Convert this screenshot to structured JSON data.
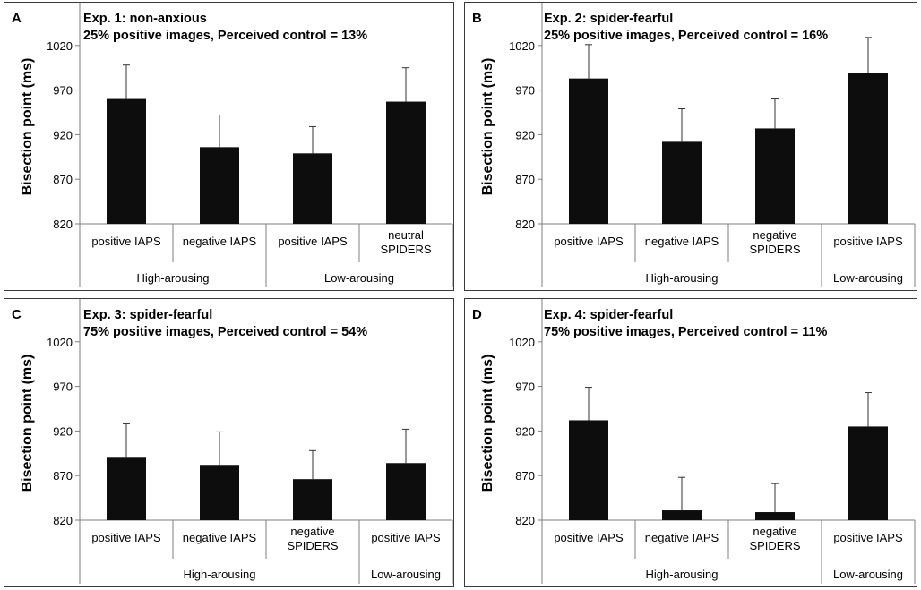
{
  "chart_data": [
    {
      "type": "bar",
      "panel_letter": "A",
      "title_lines": [
        "Exp. 1: non-anxious",
        "25% positive images,  Perceived control = 13%"
      ],
      "ylabel": "Bisection point (ms)",
      "ylim": [
        820,
        1070
      ],
      "yticks": [
        820,
        870,
        920,
        970,
        1020
      ],
      "categories": [
        [
          "positive IAPS"
        ],
        [
          "negative IAPS"
        ],
        [
          "positive IAPS"
        ],
        [
          "neutral",
          "SPIDERS"
        ]
      ],
      "groups": [
        {
          "label": "High-arousing",
          "span": 2
        },
        {
          "label": "Low-arousing",
          "span": 2
        }
      ],
      "values": [
        960,
        906,
        899,
        957
      ],
      "errors": [
        38,
        36,
        30,
        38
      ]
    },
    {
      "type": "bar",
      "panel_letter": "B",
      "title_lines": [
        "Exp. 2: spider-fearful",
        "25% positive images, Perceived control = 16%"
      ],
      "ylabel": "Bisection point (ms)",
      "ylim": [
        820,
        1070
      ],
      "yticks": [
        820,
        870,
        920,
        970,
        1020
      ],
      "categories": [
        [
          "positive IAPS"
        ],
        [
          "negative IAPS"
        ],
        [
          "negative",
          "SPIDERS"
        ],
        [
          "positive IAPS"
        ]
      ],
      "groups": [
        {
          "label": "High-arousing",
          "span": 3
        },
        {
          "label": "Low-arousing",
          "span": 1
        }
      ],
      "values": [
        983,
        912,
        927,
        989
      ],
      "errors": [
        38,
        37,
        33,
        40
      ]
    },
    {
      "type": "bar",
      "panel_letter": "C",
      "title_lines": [
        "Exp. 3: spider-fearful",
        "75% positive images, Perceived control = 54%"
      ],
      "ylabel": "Bisection point (ms)",
      "ylim": [
        820,
        1070
      ],
      "yticks": [
        820,
        870,
        920,
        970,
        1020
      ],
      "categories": [
        [
          "positive IAPS"
        ],
        [
          "negative IAPS"
        ],
        [
          "negative",
          "SPIDERS"
        ],
        [
          "positive IAPS"
        ]
      ],
      "groups": [
        {
          "label": "High-arousing",
          "span": 3
        },
        {
          "label": "Low-arousing",
          "span": 1
        }
      ],
      "values": [
        890,
        882,
        866,
        884
      ],
      "errors": [
        38,
        37,
        32,
        38
      ]
    },
    {
      "type": "bar",
      "panel_letter": "D",
      "title_lines": [
        "Exp. 4: spider-fearful",
        "75% positive images, Perceived control = 11%"
      ],
      "ylabel": "Bisection point (ms)",
      "ylim": [
        820,
        1070
      ],
      "yticks": [
        820,
        870,
        920,
        970,
        1020
      ],
      "categories": [
        [
          "positive IAPS"
        ],
        [
          "negative IAPS"
        ],
        [
          "negative",
          "SPIDERS"
        ],
        [
          "positive IAPS"
        ]
      ],
      "groups": [
        {
          "label": "High-arousing",
          "span": 3
        },
        {
          "label": "Low-arousing",
          "span": 1
        }
      ],
      "values": [
        932,
        831,
        829,
        925
      ],
      "errors": [
        37,
        37,
        32,
        38
      ]
    }
  ]
}
